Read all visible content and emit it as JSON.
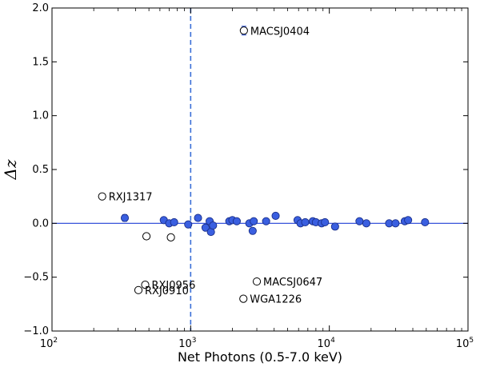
{
  "chart_data": {
    "type": "scatter",
    "title": "",
    "xlabel": "Net Photons (0.5-7.0 keV)",
    "ylabel": "Δz",
    "x_scale": "log",
    "xlim": [
      100,
      100000
    ],
    "ylim": [
      -1.0,
      2.0
    ],
    "x_ticks": [
      100,
      1000,
      10000,
      100000
    ],
    "x_tick_labels": [
      {
        "base": "10",
        "exp": "2"
      },
      {
        "base": "10",
        "exp": "3"
      },
      {
        "base": "10",
        "exp": "4"
      },
      {
        "base": "10",
        "exp": "5"
      }
    ],
    "y_ticks": [
      -1.0,
      -0.5,
      0.0,
      0.5,
      1.0,
      1.5,
      2.0
    ],
    "y_tick_labels": [
      "−1.0",
      "−0.5",
      "0.0",
      "0.5",
      "1.0",
      "1.5",
      "2.0"
    ],
    "grid": false,
    "reference_lines": [
      {
        "orientation": "horizontal",
        "value": 0.0,
        "style": "solid",
        "color": "#1f3fd6"
      },
      {
        "orientation": "vertical",
        "value": 1000,
        "style": "dashed",
        "color": "#3b6fd8"
      }
    ],
    "colors": {
      "filled": "#3a5fe0",
      "filled_edge": "#1a2f8a",
      "open_edge": "#000000",
      "reference": "#1f3fd6"
    },
    "series": [
      {
        "marker": "filled-circle",
        "points": [
          {
            "x": 335,
            "y": 0.05,
            "err": 0.03
          },
          {
            "x": 640,
            "y": 0.03
          },
          {
            "x": 700,
            "y": 0.0
          },
          {
            "x": 760,
            "y": 0.01
          },
          {
            "x": 960,
            "y": -0.01
          },
          {
            "x": 1130,
            "y": 0.05
          },
          {
            "x": 1280,
            "y": -0.04
          },
          {
            "x": 1370,
            "y": 0.02
          },
          {
            "x": 1400,
            "y": -0.08
          },
          {
            "x": 1450,
            "y": -0.02
          },
          {
            "x": 1900,
            "y": 0.02
          },
          {
            "x": 2000,
            "y": 0.03
          },
          {
            "x": 2150,
            "y": 0.02
          },
          {
            "x": 2650,
            "y": 0.0
          },
          {
            "x": 2800,
            "y": -0.07
          },
          {
            "x": 2850,
            "y": 0.02
          },
          {
            "x": 3500,
            "y": 0.02
          },
          {
            "x": 4100,
            "y": 0.07
          },
          {
            "x": 5900,
            "y": 0.03
          },
          {
            "x": 6200,
            "y": 0.0
          },
          {
            "x": 6700,
            "y": 0.01
          },
          {
            "x": 7600,
            "y": 0.02
          },
          {
            "x": 8000,
            "y": 0.01
          },
          {
            "x": 8800,
            "y": 0.0
          },
          {
            "x": 9300,
            "y": 0.01
          },
          {
            "x": 11000,
            "y": -0.03
          },
          {
            "x": 16500,
            "y": 0.02
          },
          {
            "x": 18500,
            "y": 0.0
          },
          {
            "x": 27000,
            "y": 0.0
          },
          {
            "x": 30000,
            "y": 0.0
          },
          {
            "x": 35000,
            "y": 0.02
          },
          {
            "x": 37000,
            "y": 0.03
          },
          {
            "x": 49000,
            "y": 0.01
          }
        ]
      },
      {
        "marker": "open-circle",
        "points": [
          {
            "x": 2420,
            "y": 1.79,
            "err": 0.04,
            "label": "MACSJ0404"
          },
          {
            "x": 230,
            "y": 0.25,
            "label": "RXJ1317"
          },
          {
            "x": 480,
            "y": -0.12
          },
          {
            "x": 720,
            "y": -0.13
          },
          {
            "x": 470,
            "y": -0.57,
            "label": "RXJ0956"
          },
          {
            "x": 420,
            "y": -0.62,
            "label": "RXJ0910"
          },
          {
            "x": 3000,
            "y": -0.54,
            "label": "MACSJ0647"
          },
          {
            "x": 2400,
            "y": -0.7,
            "label": "WGA1226"
          }
        ]
      }
    ]
  }
}
